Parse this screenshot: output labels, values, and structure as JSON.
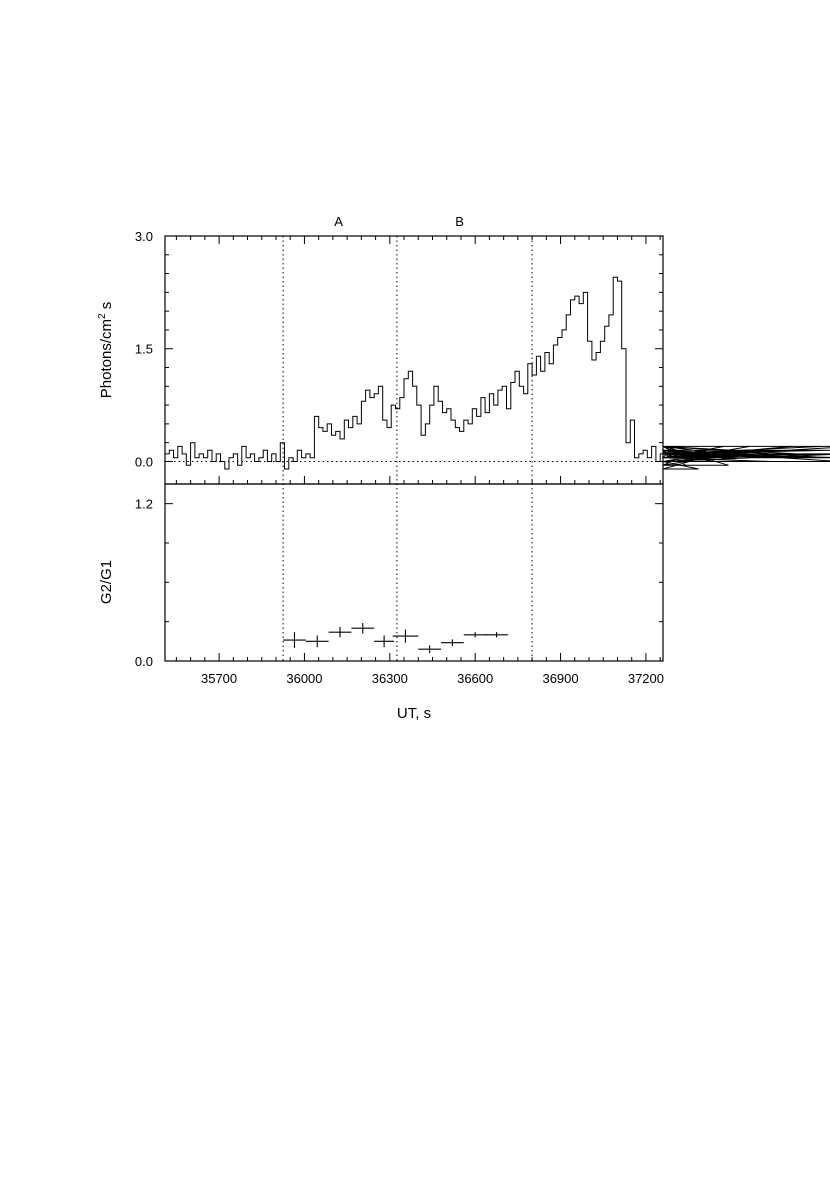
{
  "chart_data": [
    {
      "type": "line",
      "panel": "top",
      "ylabel": "Photons/cm",
      "ylabel_sup": "2",
      "ylabel_tail": " s",
      "yticks": [
        0.0,
        1.5,
        3.0
      ],
      "ytick_labels": [
        "0.0",
        "1.5",
        "3.0"
      ],
      "ylim": [
        -0.3,
        3.0
      ],
      "xlim": [
        35510,
        37260
      ],
      "zero_line": true,
      "interval_markers": [
        35925,
        36325,
        36800
      ],
      "interval_labels": [
        {
          "text": "A",
          "x": 36120
        },
        {
          "text": "B",
          "x": 36545
        }
      ],
      "series": [
        {
          "step": 15,
          "x_start": 35510,
          "values": [
            0.1,
            0.15,
            0.05,
            0.2,
            0.1,
            -0.05,
            0.25,
            0.05,
            0.1,
            0.05,
            0.15,
            0.0,
            0.1,
            0.0,
            -0.1,
            0.05,
            0.1,
            -0.05,
            0.2,
            0.05,
            0.1,
            0.0,
            0.05,
            0.15,
            0.0,
            0.1,
            0.0,
            0.25,
            -0.1,
            0.05,
            0.0,
            0.15,
            0.05,
            0.1,
            0.05,
            0.6,
            0.45,
            0.4,
            0.5,
            0.35,
            0.4,
            0.3,
            0.55,
            0.45,
            0.6,
            0.5,
            0.8,
            0.95,
            0.85,
            0.9,
            1.0,
            0.55,
            0.45,
            0.75,
            0.7,
            0.85,
            1.1,
            1.2,
            1.0,
            0.75,
            0.35,
            0.5,
            0.75,
            1.0,
            0.8,
            0.65,
            0.7,
            0.55,
            0.45,
            0.4,
            0.55,
            0.5,
            0.7,
            0.6,
            0.85,
            0.65,
            0.9,
            0.75,
            0.95,
            1.0,
            0.7,
            1.05,
            1.2,
            1.0,
            0.9,
            1.3,
            1.15,
            1.4,
            1.2,
            1.45,
            1.3,
            1.55,
            1.65,
            1.75,
            1.95,
            2.15,
            2.2,
            2.1,
            2.25,
            1.6,
            1.35,
            1.45,
            1.6,
            1.8,
            1.95,
            2.45,
            2.4,
            1.5,
            0.25,
            0.55,
            0.05,
            0.1,
            0.15,
            0.05,
            0.2,
            0.0,
            0.1,
            0.15,
            0.05,
            0.2,
            0.1,
            0.15,
            -0.05,
            0.1,
            0.0,
            -0.1,
            0.05,
            0.15,
            0.0,
            0.1,
            0.05,
            0.2,
            -0.05,
            0.1,
            0.05,
            0.15,
            0.0,
            0.2,
            0.05,
            0.1,
            0.15,
            0.05,
            0.0,
            0.1,
            0.05,
            0.15,
            0.05,
            0.2,
            0.1,
            0.15,
            0.05,
            0.1,
            0.05,
            0.1,
            0.2,
            0.05,
            0.1,
            0.15,
            0.0,
            0.1,
            0.05,
            0.2
          ]
        }
      ]
    },
    {
      "type": "scatter",
      "panel": "bottom",
      "ylabel": "G2/G1",
      "xlabel": "UT, s",
      "yticks": [
        0.0,
        1.2
      ],
      "ytick_labels": [
        "0.0",
        "1.2"
      ],
      "ylim": [
        0.0,
        1.35
      ],
      "xlim": [
        35510,
        37260
      ],
      "xticks": [
        35700,
        36000,
        36300,
        36600,
        36900,
        37200
      ],
      "xtick_labels": [
        "35700",
        "36000",
        "36300",
        "36600",
        "36900",
        "37200"
      ],
      "interval_markers": [
        35925,
        36325,
        36800
      ],
      "points": [
        {
          "x": 35965,
          "y": 0.16,
          "xerr": 40,
          "yerr": 0.06
        },
        {
          "x": 36045,
          "y": 0.15,
          "xerr": 40,
          "yerr": 0.045
        },
        {
          "x": 36125,
          "y": 0.22,
          "xerr": 40,
          "yerr": 0.04
        },
        {
          "x": 36205,
          "y": 0.25,
          "xerr": 40,
          "yerr": 0.04
        },
        {
          "x": 36280,
          "y": 0.15,
          "xerr": 35,
          "yerr": 0.045
        },
        {
          "x": 36355,
          "y": 0.19,
          "xerr": 45,
          "yerr": 0.05
        },
        {
          "x": 36440,
          "y": 0.09,
          "xerr": 40,
          "yerr": 0.03
        },
        {
          "x": 36520,
          "y": 0.14,
          "xerr": 40,
          "yerr": 0.025
        },
        {
          "x": 36600,
          "y": 0.2,
          "xerr": 40,
          "yerr": 0.02
        },
        {
          "x": 36675,
          "y": 0.2,
          "xerr": 40,
          "yerr": 0.02
        }
      ]
    }
  ]
}
